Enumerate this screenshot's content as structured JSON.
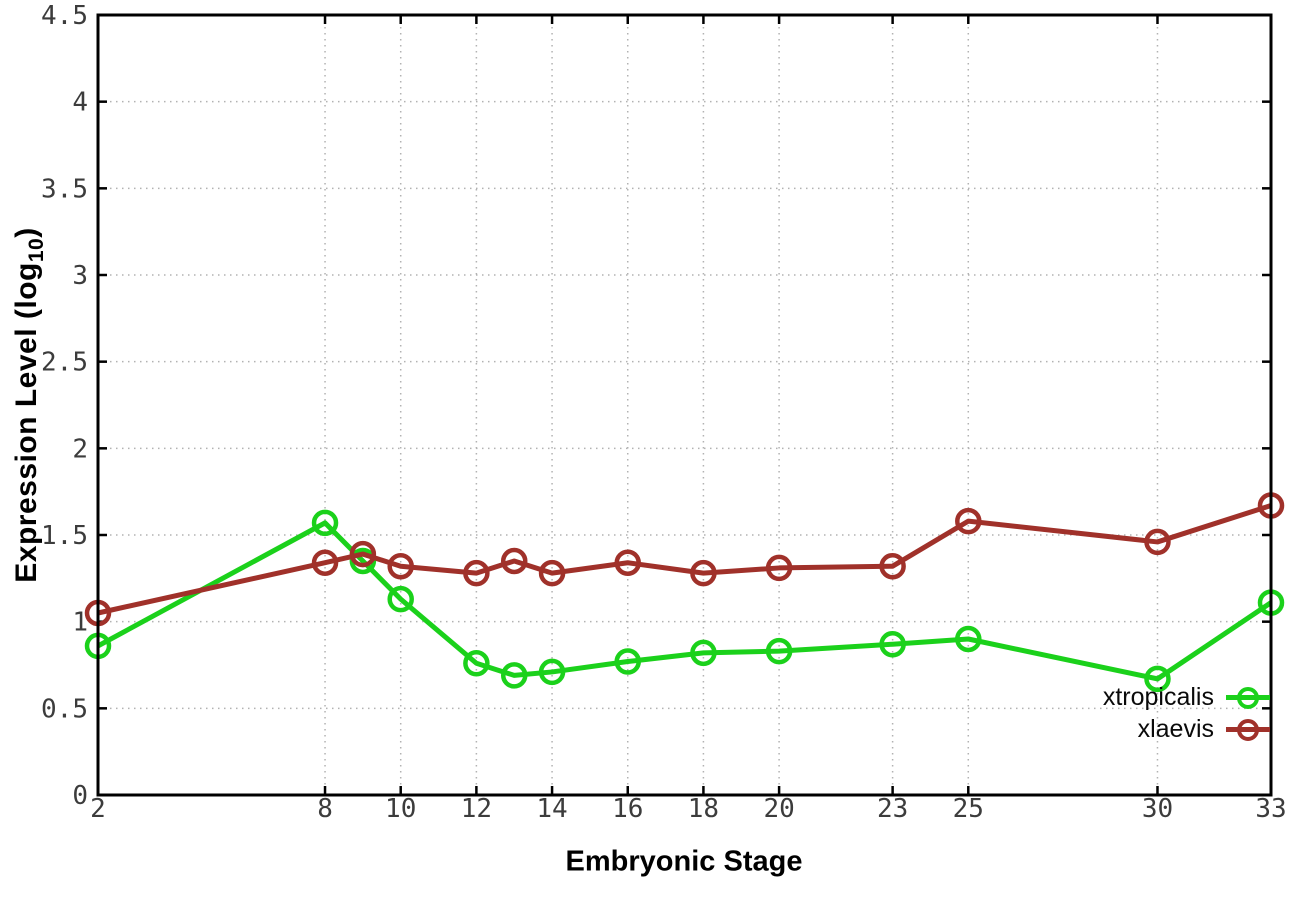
{
  "chart_data": {
    "type": "line",
    "title": "",
    "xlabel": "Embryonic Stage",
    "ylabel": "Expression Level (log10)",
    "ylabel_main": "Expression Level (log",
    "ylabel_sub": "10",
    "ylabel_suffix": ")",
    "x": [
      2,
      8,
      9,
      10,
      12,
      13,
      14,
      16,
      18,
      20,
      23,
      25,
      30,
      33
    ],
    "series": [
      {
        "name": "xtropicalis",
        "color": "#1bd11b",
        "values": [
          0.86,
          1.57,
          1.35,
          1.13,
          0.76,
          0.69,
          0.71,
          0.77,
          0.82,
          0.83,
          0.87,
          0.9,
          0.67,
          1.11
        ]
      },
      {
        "name": "xlaevis",
        "color": "#a0312a",
        "values": [
          1.05,
          1.34,
          1.39,
          1.32,
          1.28,
          1.35,
          1.28,
          1.34,
          1.28,
          1.31,
          1.32,
          1.58,
          1.46,
          1.67
        ]
      }
    ],
    "x_ticks": [
      2,
      8,
      10,
      12,
      14,
      16,
      18,
      20,
      23,
      25,
      30,
      33
    ],
    "y_ticks": [
      0,
      0.5,
      1,
      1.5,
      2,
      2.5,
      3,
      3.5,
      4,
      4.5
    ],
    "xlim": [
      2,
      33
    ],
    "ylim": [
      0,
      4.5
    ],
    "grid": true,
    "legend_position": "bottom-right",
    "marker": "open-circle",
    "line_width": 5,
    "colors": {
      "axis": "#000000",
      "grid": "#b2b2b2",
      "tick_label": "#3c3c3c",
      "background": "#ffffff"
    }
  }
}
